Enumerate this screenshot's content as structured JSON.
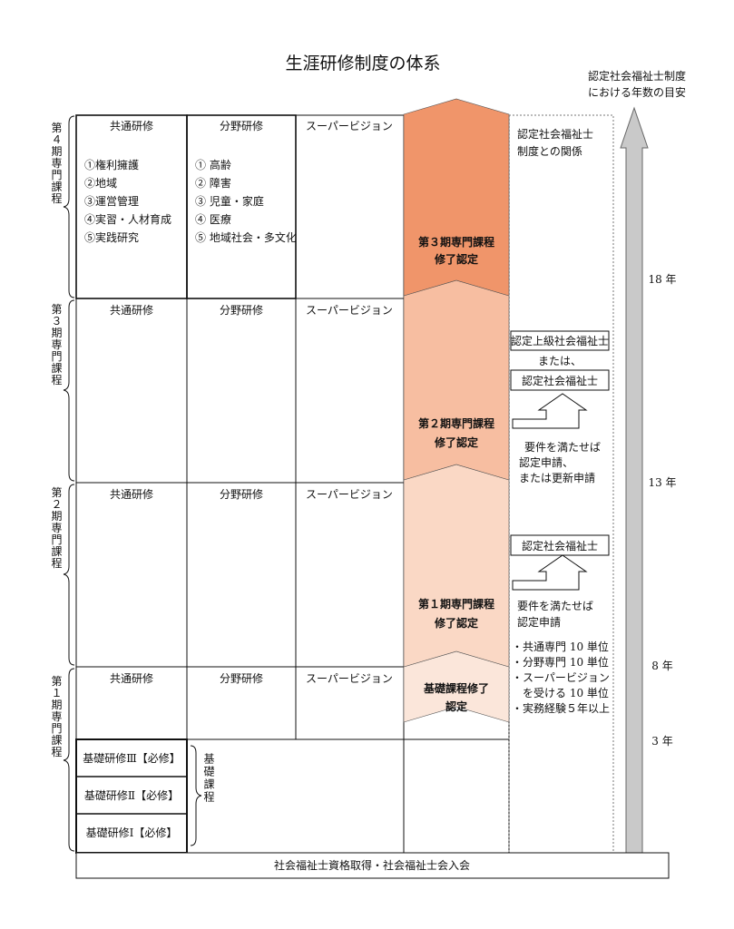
{
  "title": "生涯研修制度の体系",
  "years_header": [
    "認定社会福祉士制度",
    "における年数の目安"
  ],
  "years": [
    "18 年",
    "13 年",
    "8 年",
    "3 年"
  ],
  "column_headers": {
    "common": "共通研修",
    "field": "分野研修",
    "supervision": "スーパービジョン"
  },
  "periods": [
    {
      "label": "第４期専門課程"
    },
    {
      "label": "第３期専門課程"
    },
    {
      "label": "第２期専門課程"
    },
    {
      "label": "第１期専門課程"
    }
  ],
  "common_topics": [
    "①権利擁護",
    "②地域",
    "③運営管理",
    "④実習・人材育成",
    "⑤実践研究"
  ],
  "field_topics": [
    "① 高齢",
    "② 障害",
    "③ 児童・家庭",
    "④ 医療",
    "⑤ 地域社会・多文化"
  ],
  "basic_trainings": [
    "基礎研修Ⅲ【必修】",
    "基礎研修Ⅱ【必修】",
    "基礎研修Ⅰ【必修】"
  ],
  "basic_course_label": "基礎課程",
  "arrows": [
    {
      "line1": "第３期専門課程",
      "line2": "修了認定",
      "color": "#f0956a"
    },
    {
      "line1": "第２期専門課程",
      "line2": "修了認定",
      "color": "#f7bea1"
    },
    {
      "line1": "第１期専門課程",
      "line2": "修了認定",
      "color": "#fad8c5"
    },
    {
      "line1": "基礎課程修了",
      "line2": "認定",
      "color": "#fbe6da"
    }
  ],
  "relation": {
    "header": [
      "認定社会福祉士",
      "制度との関係"
    ],
    "upper_box": "認定上級社会福祉士",
    "or": "または、",
    "box_mid": "認定社会福祉士",
    "note_mid": [
      "要件を満たせば",
      "認定申請、",
      "または更新申請"
    ],
    "box_low": "認定社会福祉士",
    "note_low": [
      "要件を満たせば",
      "認定申請"
    ],
    "requirements": [
      "・共通専門 10 単位",
      "・分野専門 10 単位",
      "・スーパービジョン",
      "を受ける 10 単位",
      "・実務経験５年以上"
    ]
  },
  "footer": "社会福祉士資格取得・社会福祉士会入会"
}
